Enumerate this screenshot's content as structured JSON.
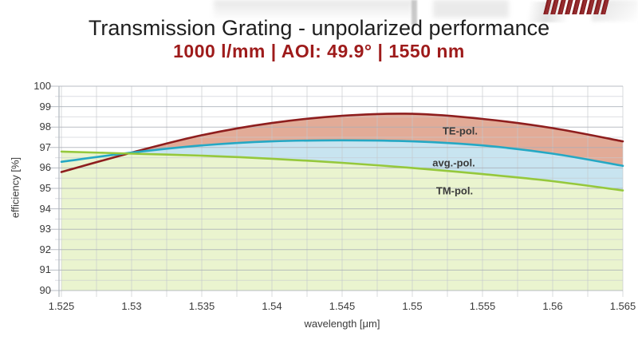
{
  "header": {
    "logo_name": "grating-stripes-logo",
    "brand_color": "#8e1e1e"
  },
  "chart_data": {
    "type": "area",
    "title": "Transmission Grating - unpolarized performance",
    "subtitle": "1000 l/mm | AOI: 49.9° | 1550 nm",
    "xlabel": "wavelength [μm]",
    "ylabel": "efficiency [%]",
    "xlim": [
      1.525,
      1.565
    ],
    "ylim": [
      90,
      100
    ],
    "x_major_step": 0.005,
    "x_minor_step": 0.0025,
    "y_major_step": 1,
    "y_minor_step": 0.5,
    "grid": true,
    "legend_position": "inline-labels",
    "x": [
      1.525,
      1.53,
      1.535,
      1.54,
      1.545,
      1.55,
      1.555,
      1.56,
      1.565
    ],
    "xtick_labels": [
      "1.525",
      "1.53",
      "1.535",
      "1.54",
      "1.545",
      "1.55",
      "1.555",
      "1.56",
      "1.565"
    ],
    "ytick_labels": [
      "90",
      "91",
      "92",
      "93",
      "94",
      "95",
      "96",
      "97",
      "98",
      "99",
      "100"
    ],
    "series": [
      {
        "name": "TE-pol.",
        "line_color": "#8e1e1e",
        "fill_color": "#e2ab97",
        "values": [
          95.8,
          96.75,
          97.6,
          98.2,
          98.55,
          98.65,
          98.4,
          97.95,
          97.3
        ]
      },
      {
        "name": "avg.-pol.",
        "line_color": "#25a8c4",
        "fill_color": "#c8e4f0",
        "values": [
          96.3,
          96.75,
          97.1,
          97.3,
          97.35,
          97.3,
          97.1,
          96.7,
          96.1
        ]
      },
      {
        "name": "TM-pol.",
        "line_color": "#95c83c",
        "fill_color": "#eaf4cf",
        "values": [
          96.8,
          96.7,
          96.6,
          96.45,
          96.25,
          96.0,
          95.7,
          95.35,
          94.9
        ]
      }
    ]
  }
}
